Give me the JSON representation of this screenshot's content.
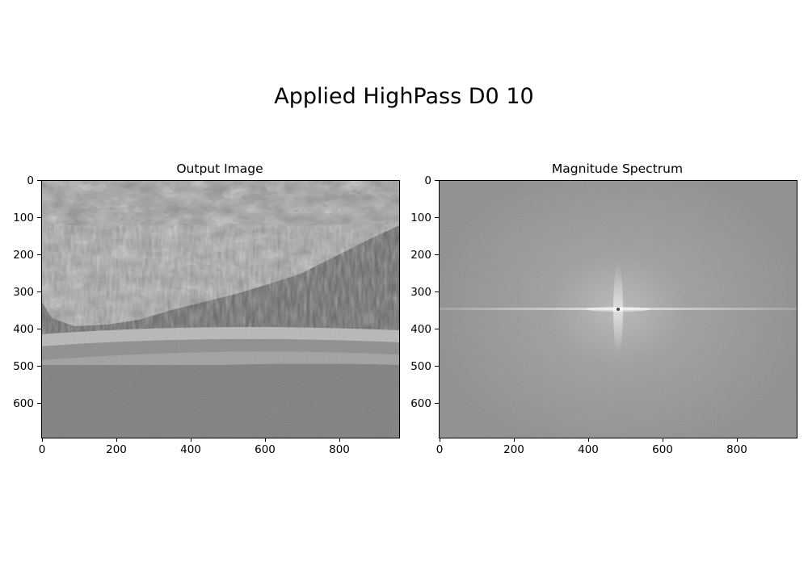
{
  "figure": {
    "title": "Applied HighPass D0 10"
  },
  "panels": [
    {
      "title": "Output Image",
      "yticks": [
        "0",
        "100",
        "200",
        "300",
        "400",
        "500",
        "600"
      ],
      "xticks": [
        "0",
        "200",
        "400",
        "600",
        "800"
      ]
    },
    {
      "title": "Magnitude Spectrum",
      "yticks": [
        "0",
        "100",
        "200",
        "300",
        "400",
        "500",
        "600"
      ],
      "xticks": [
        "0",
        "200",
        "400",
        "600",
        "800"
      ]
    }
  ],
  "colors": {
    "background": "#ffffff",
    "axis": "#000000"
  }
}
